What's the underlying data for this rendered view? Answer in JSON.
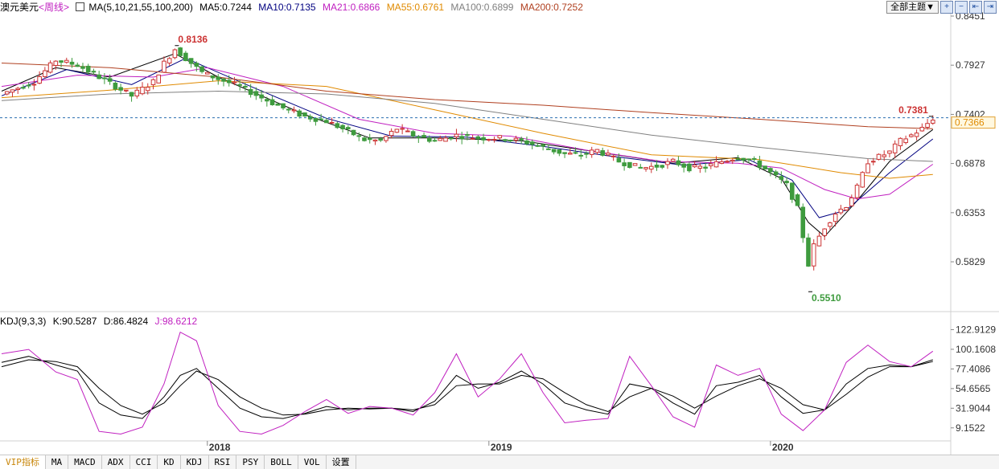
{
  "header": {
    "symbol": "澳元美元",
    "period": "<周线>",
    "ma_params": "MA(5,10,21,55,100,200)",
    "ma5": "MA5:0.7244",
    "ma10": "MA10:0.7135",
    "ma21": "MA21:0.6866",
    "ma55": "MA55:0.6761",
    "ma100": "MA100:0.6899",
    "ma200": "MA200:0.7252",
    "theme_select": "全部主题▼"
  },
  "toolbar_buttons": [
    "+",
    "−",
    "⇤",
    "⇥"
  ],
  "kdj_legend": {
    "name": "KDJ(9,3,3)",
    "k": "K:90.5287",
    "d": "D:86.4824",
    "j": "J:98.6212"
  },
  "bottom_tabs": [
    "VIP指标",
    "MA",
    "MACD",
    "ADX",
    "CCI",
    "KD",
    "KDJ",
    "RSI",
    "PSY",
    "BOLL",
    "VOL",
    "设置"
  ],
  "colors": {
    "up": "#cc3333",
    "down": "#3e9b3e",
    "ma5": "#000000",
    "ma10": "#000080",
    "ma21": "#c020c0",
    "ma55": "#e08a00",
    "ma100": "#808080",
    "ma200": "#b04020",
    "kdj_k": "#000000",
    "kdj_d": "#000000",
    "kdj_j": "#c020c0",
    "dash_line": "#2a6fb0"
  },
  "chart_data": [
    {
      "type": "candlestick",
      "title": "澳元美元 <周线>",
      "y_axis_ticks": [
        0.8451,
        0.7927,
        0.7402,
        0.6878,
        0.6353,
        0.5829
      ],
      "x_axis_ticks": [
        "2018",
        "2019",
        "2020"
      ],
      "annotations": [
        {
          "label": "0.8136",
          "value": 0.8136
        },
        {
          "label": "0.7381",
          "value": 0.7381
        },
        {
          "label": "0.5510",
          "value": 0.551
        }
      ],
      "current_price_label": "0.7366",
      "current_price": 0.7366,
      "close_path": [
        [
          0,
          0.762
        ],
        [
          6,
          0.775
        ],
        [
          10,
          0.798
        ],
        [
          14,
          0.793
        ],
        [
          18,
          0.78
        ],
        [
          21,
          0.77
        ],
        [
          24,
          0.76
        ],
        [
          28,
          0.775
        ],
        [
          30,
          0.795
        ],
        [
          32,
          0.81
        ],
        [
          34,
          0.8
        ],
        [
          37,
          0.785
        ],
        [
          40,
          0.778
        ],
        [
          44,
          0.77
        ],
        [
          48,
          0.758
        ],
        [
          52,
          0.747
        ],
        [
          56,
          0.738
        ],
        [
          60,
          0.733
        ],
        [
          64,
          0.722
        ],
        [
          67,
          0.713
        ],
        [
          70,
          0.712
        ],
        [
          73,
          0.725
        ],
        [
          76,
          0.718
        ],
        [
          80,
          0.712
        ],
        [
          84,
          0.718
        ],
        [
          88,
          0.715
        ],
        [
          92,
          0.715
        ],
        [
          96,
          0.712
        ],
        [
          100,
          0.705
        ],
        [
          104,
          0.698
        ],
        [
          107,
          0.697
        ],
        [
          110,
          0.702
        ],
        [
          114,
          0.69
        ],
        [
          118,
          0.683
        ],
        [
          121,
          0.685
        ],
        [
          124,
          0.69
        ],
        [
          127,
          0.683
        ],
        [
          130,
          0.684
        ],
        [
          133,
          0.69
        ],
        [
          136,
          0.695
        ],
        [
          139,
          0.69
        ],
        [
          142,
          0.678
        ],
        [
          145,
          0.665
        ],
        [
          147,
          0.64
        ],
        [
          149,
          0.58
        ],
        [
          150,
          0.6
        ],
        [
          152,
          0.62
        ],
        [
          154,
          0.635
        ],
        [
          156,
          0.643
        ],
        [
          158,
          0.662
        ],
        [
          160,
          0.69
        ],
        [
          162,
          0.695
        ],
        [
          164,
          0.7
        ],
        [
          166,
          0.712
        ],
        [
          168,
          0.718
        ],
        [
          170,
          0.725
        ],
        [
          172,
          0.736
        ]
      ],
      "ma_lines": {
        "MA5": [
          [
            0,
            0.765
          ],
          [
            10,
            0.79
          ],
          [
            20,
            0.78
          ],
          [
            32,
            0.805
          ],
          [
            40,
            0.78
          ],
          [
            56,
            0.74
          ],
          [
            68,
            0.715
          ],
          [
            80,
            0.715
          ],
          [
            96,
            0.712
          ],
          [
            110,
            0.7
          ],
          [
            124,
            0.688
          ],
          [
            136,
            0.694
          ],
          [
            144,
            0.672
          ],
          [
            149,
            0.625
          ],
          [
            152,
            0.61
          ],
          [
            158,
            0.648
          ],
          [
            164,
            0.69
          ],
          [
            172,
            0.724
          ]
        ],
        "MA10": [
          [
            0,
            0.76
          ],
          [
            12,
            0.788
          ],
          [
            24,
            0.772
          ],
          [
            34,
            0.8
          ],
          [
            46,
            0.77
          ],
          [
            60,
            0.736
          ],
          [
            72,
            0.717
          ],
          [
            86,
            0.716
          ],
          [
            100,
            0.706
          ],
          [
            112,
            0.696
          ],
          [
            126,
            0.686
          ],
          [
            138,
            0.692
          ],
          [
            146,
            0.67
          ],
          [
            151,
            0.63
          ],
          [
            156,
            0.638
          ],
          [
            164,
            0.678
          ],
          [
            172,
            0.714
          ]
        ],
        "MA21": [
          [
            0,
            0.77
          ],
          [
            14,
            0.782
          ],
          [
            28,
            0.78
          ],
          [
            38,
            0.79
          ],
          [
            52,
            0.77
          ],
          [
            66,
            0.735
          ],
          [
            80,
            0.72
          ],
          [
            94,
            0.717
          ],
          [
            108,
            0.702
          ],
          [
            122,
            0.69
          ],
          [
            136,
            0.688
          ],
          [
            144,
            0.683
          ],
          [
            152,
            0.66
          ],
          [
            158,
            0.65
          ],
          [
            164,
            0.655
          ],
          [
            172,
            0.687
          ]
        ],
        "MA55": [
          [
            0,
            0.758
          ],
          [
            20,
            0.766
          ],
          [
            40,
            0.776
          ],
          [
            60,
            0.77
          ],
          [
            80,
            0.745
          ],
          [
            100,
            0.72
          ],
          [
            120,
            0.697
          ],
          [
            140,
            0.692
          ],
          [
            155,
            0.678
          ],
          [
            164,
            0.672
          ],
          [
            172,
            0.676
          ]
        ],
        "MA100": [
          [
            0,
            0.755
          ],
          [
            20,
            0.762
          ],
          [
            40,
            0.765
          ],
          [
            60,
            0.762
          ],
          [
            80,
            0.752
          ],
          [
            100,
            0.735
          ],
          [
            120,
            0.718
          ],
          [
            140,
            0.705
          ],
          [
            160,
            0.693
          ],
          [
            172,
            0.69
          ]
        ],
        "MA200": [
          [
            0,
            0.795
          ],
          [
            20,
            0.79
          ],
          [
            40,
            0.78
          ],
          [
            60,
            0.765
          ],
          [
            80,
            0.756
          ],
          [
            100,
            0.75
          ],
          [
            120,
            0.742
          ],
          [
            140,
            0.735
          ],
          [
            160,
            0.727
          ],
          [
            172,
            0.725
          ]
        ]
      }
    },
    {
      "type": "line",
      "title": "KDJ(9,3,3)",
      "y_axis_ticks": [
        122.9129,
        100.1608,
        77.4086,
        54.6565,
        31.9044,
        9.1522
      ],
      "ylim": [
        -5,
        128
      ],
      "series": [
        {
          "name": "K",
          "values": [
            [
              0,
              85
            ],
            [
              5,
              92
            ],
            [
              10,
              82
            ],
            [
              14,
              75
            ],
            [
              18,
              38
            ],
            [
              22,
              24
            ],
            [
              26,
              20
            ],
            [
              30,
              45
            ],
            [
              33,
              70
            ],
            [
              36,
              78
            ],
            [
              40,
              55
            ],
            [
              44,
              32
            ],
            [
              48,
              22
            ],
            [
              52,
              20
            ],
            [
              56,
              26
            ],
            [
              60,
              34
            ],
            [
              64,
              30
            ],
            [
              68,
              32
            ],
            [
              72,
              32
            ],
            [
              76,
              28
            ],
            [
              80,
              40
            ],
            [
              84,
              70
            ],
            [
              88,
              55
            ],
            [
              92,
              62
            ],
            [
              96,
              75
            ],
            [
              100,
              60
            ],
            [
              104,
              38
            ],
            [
              108,
              30
            ],
            [
              112,
              25
            ],
            [
              116,
              60
            ],
            [
              120,
              55
            ],
            [
              124,
              38
            ],
            [
              128,
              25
            ],
            [
              132,
              58
            ],
            [
              136,
              62
            ],
            [
              140,
              70
            ],
            [
              144,
              45
            ],
            [
              148,
              26
            ],
            [
              152,
              30
            ],
            [
              156,
              60
            ],
            [
              160,
              78
            ],
            [
              164,
              82
            ],
            [
              168,
              80
            ],
            [
              172,
              88
            ]
          ]
        },
        {
          "name": "D",
          "values": [
            [
              0,
              80
            ],
            [
              5,
              88
            ],
            [
              10,
              86
            ],
            [
              14,
              80
            ],
            [
              18,
              55
            ],
            [
              22,
              35
            ],
            [
              26,
              25
            ],
            [
              30,
              38
            ],
            [
              33,
              58
            ],
            [
              36,
              75
            ],
            [
              40,
              65
            ],
            [
              44,
              45
            ],
            [
              48,
              32
            ],
            [
              52,
              24
            ],
            [
              56,
              25
            ],
            [
              60,
              30
            ],
            [
              64,
              32
            ],
            [
              68,
              31
            ],
            [
              72,
              32
            ],
            [
              76,
              30
            ],
            [
              80,
              36
            ],
            [
              84,
              58
            ],
            [
              88,
              60
            ],
            [
              92,
              60
            ],
            [
              96,
              70
            ],
            [
              100,
              66
            ],
            [
              104,
              50
            ],
            [
              108,
              36
            ],
            [
              112,
              28
            ],
            [
              116,
              45
            ],
            [
              120,
              55
            ],
            [
              124,
              46
            ],
            [
              128,
              32
            ],
            [
              132,
              46
            ],
            [
              136,
              58
            ],
            [
              140,
              66
            ],
            [
              144,
              55
            ],
            [
              148,
              36
            ],
            [
              152,
              30
            ],
            [
              156,
              48
            ],
            [
              160,
              68
            ],
            [
              164,
              80
            ],
            [
              168,
              80
            ],
            [
              172,
              86
            ]
          ]
        },
        {
          "name": "J",
          "values": [
            [
              0,
              95
            ],
            [
              5,
              100
            ],
            [
              10,
              74
            ],
            [
              14,
              65
            ],
            [
              18,
              5
            ],
            [
              22,
              2
            ],
            [
              26,
              10
            ],
            [
              30,
              60
            ],
            [
              33,
              120
            ],
            [
              36,
              110
            ],
            [
              40,
              35
            ],
            [
              44,
              5
            ],
            [
              48,
              2
            ],
            [
              52,
              12
            ],
            [
              56,
              28
            ],
            [
              60,
              42
            ],
            [
              64,
              26
            ],
            [
              68,
              34
            ],
            [
              72,
              32
            ],
            [
              76,
              24
            ],
            [
              80,
              50
            ],
            [
              84,
              95
            ],
            [
              88,
              45
            ],
            [
              92,
              66
            ],
            [
              96,
              95
            ],
            [
              100,
              50
            ],
            [
              104,
              15
            ],
            [
              108,
              18
            ],
            [
              112,
              20
            ],
            [
              116,
              92
            ],
            [
              120,
              58
            ],
            [
              124,
              22
            ],
            [
              128,
              10
            ],
            [
              132,
              82
            ],
            [
              136,
              70
            ],
            [
              140,
              78
            ],
            [
              144,
              25
            ],
            [
              148,
              6
            ],
            [
              152,
              30
            ],
            [
              156,
              85
            ],
            [
              160,
              105
            ],
            [
              164,
              86
            ],
            [
              168,
              80
            ],
            [
              172,
              98
            ]
          ]
        }
      ]
    }
  ]
}
